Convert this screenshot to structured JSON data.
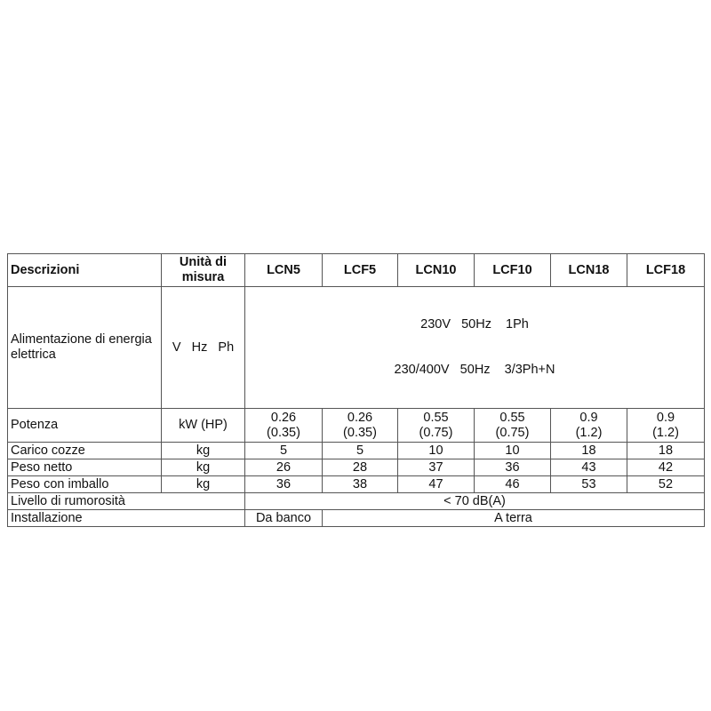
{
  "header": {
    "description": "Descrizioni",
    "unit": "Unità di misura",
    "models": [
      "LCN5",
      "LCF5",
      "LCN10",
      "LCF10",
      "LCN18",
      "LCF18"
    ]
  },
  "rows": {
    "power_supply": {
      "label": "Alimentazione di energia elettrica",
      "unit": "V   Hz   Ph",
      "line1": "230V   50Hz    1Ph",
      "line2": "230/400V   50Hz    3/3Ph+N"
    },
    "power": {
      "label": "Potenza",
      "unit": "kW (HP)",
      "values": [
        {
          "kw": "0.26",
          "hp": "(0.35)"
        },
        {
          "kw": "0.26",
          "hp": "(0.35)"
        },
        {
          "kw": "0.55",
          "hp": "(0.75)"
        },
        {
          "kw": "0.55",
          "hp": "(0.75)"
        },
        {
          "kw": "0.9",
          "hp": "(1.2)"
        },
        {
          "kw": "0.9",
          "hp": "(1.2)"
        }
      ]
    },
    "load": {
      "label": "Carico cozze",
      "unit": "kg",
      "values": [
        "5",
        "5",
        "10",
        "10",
        "18",
        "18"
      ]
    },
    "net_weight": {
      "label": "Peso netto",
      "unit": "kg",
      "values": [
        "26",
        "28",
        "37",
        "36",
        "43",
        "42"
      ]
    },
    "gross_weight": {
      "label": "Peso con imballo",
      "unit": "kg",
      "values": [
        "36",
        "38",
        "47",
        "46",
        "53",
        "52"
      ]
    },
    "noise": {
      "label": "Livello di rumorosità",
      "value": "< 70 dB(A)"
    },
    "installation": {
      "label": "Installazione",
      "value_first": "Da banco",
      "value_rest": "A terra"
    }
  }
}
